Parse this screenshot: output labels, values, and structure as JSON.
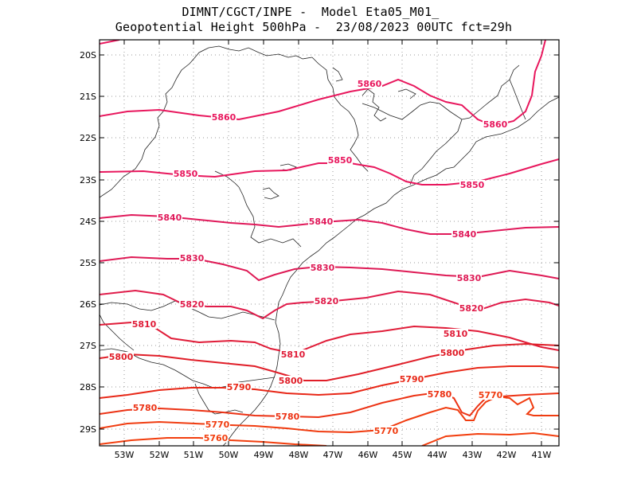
{
  "title": {
    "line1": "DIMNT/CGCT/INPE -  Model Eta05_M01_",
    "line2": "Geopotential Height 500hPa -  23/08/2023 00UTC fct=29h"
  },
  "axes": {
    "lat_labels": [
      "20S",
      "21S",
      "22S",
      "23S",
      "24S",
      "25S",
      "26S",
      "27S",
      "28S",
      "29S"
    ],
    "lon_labels": [
      "53W",
      "52W",
      "51W",
      "50W",
      "49W",
      "48W",
      "47W",
      "46W",
      "45W",
      "44W",
      "43W",
      "42W",
      "41W"
    ]
  },
  "contour_colors": {
    "5860": "#e8175d",
    "5850": "#e8175d",
    "5840": "#e0195a",
    "5830": "#de1a55",
    "5820": "#e01c4a",
    "5810": "#e01c38",
    "5800": "#e01e28",
    "5790": "#e82818",
    "5780": "#ec3214",
    "5770": "#f03c10",
    "5760": "#f23e0e"
  },
  "contour_labels": [
    {
      "id": "5860-a",
      "text": "5860",
      "level": "5860"
    },
    {
      "id": "5860-b",
      "text": "5860",
      "level": "5860"
    },
    {
      "id": "5860-c",
      "text": "5860",
      "level": "5860"
    },
    {
      "id": "5850-a",
      "text": "5850",
      "level": "5850"
    },
    {
      "id": "5850-b",
      "text": "5850",
      "level": "5850"
    },
    {
      "id": "5850-c",
      "text": "5850",
      "level": "5850"
    },
    {
      "id": "5840-a",
      "text": "5840",
      "level": "5840"
    },
    {
      "id": "5840-b",
      "text": "5840",
      "level": "5840"
    },
    {
      "id": "5840-c",
      "text": "5840",
      "level": "5840"
    },
    {
      "id": "5830-a",
      "text": "5830",
      "level": "5830"
    },
    {
      "id": "5830-b",
      "text": "5830",
      "level": "5830"
    },
    {
      "id": "5830-c",
      "text": "5830",
      "level": "5830"
    },
    {
      "id": "5820-a",
      "text": "5820",
      "level": "5820"
    },
    {
      "id": "5820-b",
      "text": "5820",
      "level": "5820"
    },
    {
      "id": "5820-c",
      "text": "5820",
      "level": "5820"
    },
    {
      "id": "5810-a",
      "text": "5810",
      "level": "5810"
    },
    {
      "id": "5810-b",
      "text": "5810",
      "level": "5810"
    },
    {
      "id": "5810-c",
      "text": "5810",
      "level": "5810"
    },
    {
      "id": "5800-a",
      "text": "5800",
      "level": "5800"
    },
    {
      "id": "5800-b",
      "text": "5800",
      "level": "5800"
    },
    {
      "id": "5800-c",
      "text": "5800",
      "level": "5800"
    },
    {
      "id": "5790-a",
      "text": "5790",
      "level": "5790"
    },
    {
      "id": "5790-b",
      "text": "5790",
      "level": "5790"
    },
    {
      "id": "5780-a",
      "text": "5780",
      "level": "5780"
    },
    {
      "id": "5780-b",
      "text": "5780",
      "level": "5780"
    },
    {
      "id": "5780-c",
      "text": "5780",
      "level": "5780"
    },
    {
      "id": "5770-a",
      "text": "5770",
      "level": "5770"
    },
    {
      "id": "5770-b",
      "text": "5770",
      "level": "5770"
    },
    {
      "id": "5770-c",
      "text": "5770",
      "level": "5770"
    },
    {
      "id": "5760-a",
      "text": "5760",
      "level": "5760"
    }
  ]
}
